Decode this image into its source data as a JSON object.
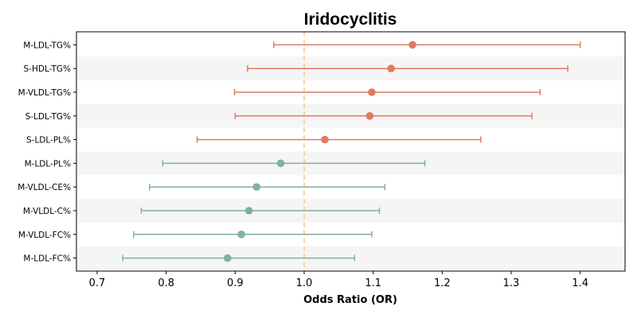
{
  "chart_data": {
    "type": "forest",
    "title": "Iridocyclitis",
    "xlabel": "Odds Ratio (OR)",
    "ylabel": "",
    "xlim": [
      0.67,
      1.465
    ],
    "xticks": [
      "0.7",
      "0.8",
      "0.9",
      "1.0",
      "1.1",
      "1.2",
      "1.3",
      "1.4"
    ],
    "reference_line": 1.0,
    "grid": false,
    "row_banding": true,
    "colors": {
      "risk": "#e07a5f",
      "protective": "#81b29a",
      "reference_line": "#f2cc8f",
      "band": "#f5f5f5"
    },
    "rows": [
      {
        "label": "M-LDL-TG%",
        "or": 1.157,
        "lower": 0.956,
        "upper": 1.4
      },
      {
        "label": "S-HDL-TG%",
        "or": 1.126,
        "lower": 0.918,
        "upper": 1.382
      },
      {
        "label": "M-VLDL-TG%",
        "or": 1.098,
        "lower": 0.899,
        "upper": 1.342
      },
      {
        "label": "S-LDL-TG%",
        "or": 1.095,
        "lower": 0.9,
        "upper": 1.33
      },
      {
        "label": "S-LDL-PL%",
        "or": 1.03,
        "lower": 0.845,
        "upper": 1.256
      },
      {
        "label": "M-LDL-PL%",
        "or": 0.966,
        "lower": 0.795,
        "upper": 1.175
      },
      {
        "label": "M-VLDL-CE%",
        "or": 0.931,
        "lower": 0.776,
        "upper": 1.117
      },
      {
        "label": "M-VLDL-C%",
        "or": 0.92,
        "lower": 0.764,
        "upper": 1.109
      },
      {
        "label": "M-VLDL-FC%",
        "or": 0.909,
        "lower": 0.753,
        "upper": 1.098
      },
      {
        "label": "M-LDL-FC%",
        "or": 0.889,
        "lower": 0.737,
        "upper": 1.073
      }
    ]
  }
}
